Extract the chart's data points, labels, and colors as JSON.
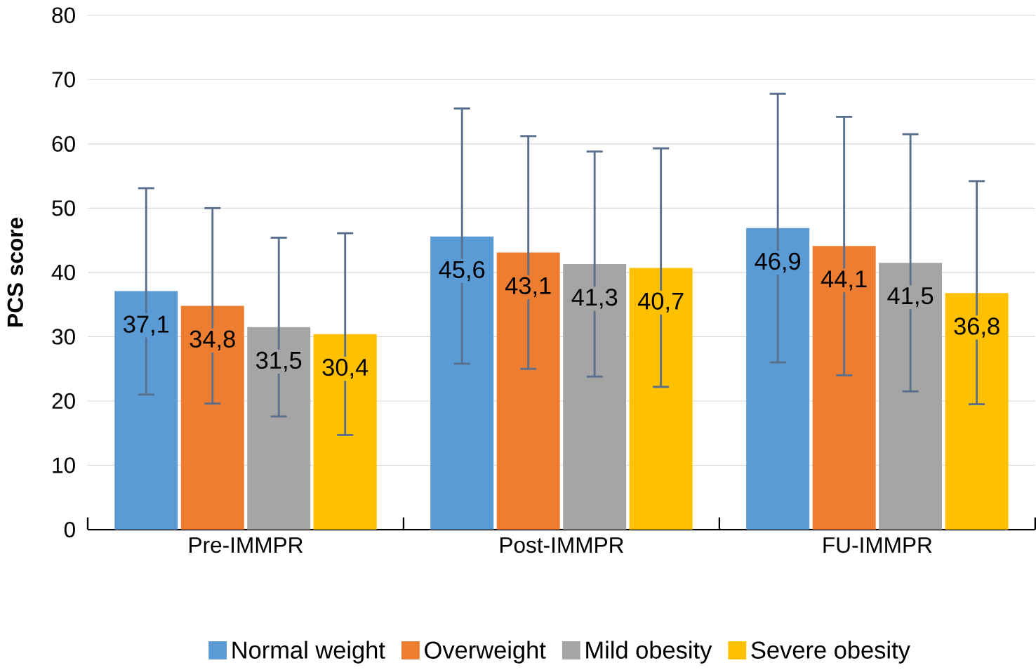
{
  "chart_data": {
    "type": "bar",
    "ylabel": "PCS score",
    "categories": [
      "Pre-IMMPR",
      "Post-IMMPR",
      "FU-IMMPR"
    ],
    "series": [
      {
        "name": "Normal weight",
        "color": "#5b9bd5",
        "values": [
          37.1,
          45.6,
          46.9
        ],
        "value_labels": [
          "37,1",
          "45,6",
          "46,9"
        ],
        "errors": [
          [
            21,
            53.1
          ],
          [
            25.8,
            65.5
          ],
          [
            26,
            67.8
          ]
        ]
      },
      {
        "name": "Overweight",
        "color": "#ed7d31",
        "values": [
          34.8,
          43.1,
          44.1
        ],
        "value_labels": [
          "34,8",
          "43,1",
          "44,1"
        ],
        "errors": [
          [
            19.6,
            50
          ],
          [
            25,
            61.2
          ],
          [
            24,
            64.2
          ]
        ]
      },
      {
        "name": "Mild obesity",
        "color": "#a5a5a5",
        "values": [
          31.5,
          41.3,
          41.5
        ],
        "value_labels": [
          "31,5",
          "41,3",
          "41,5"
        ],
        "errors": [
          [
            17.6,
            45.4
          ],
          [
            23.8,
            58.8
          ],
          [
            21.5,
            61.5
          ]
        ]
      },
      {
        "name": "Severe obesity",
        "color": "#ffc000",
        "values": [
          30.4,
          40.7,
          36.8
        ],
        "value_labels": [
          "30,4",
          "40,7",
          "36,8"
        ],
        "errors": [
          [
            14.7,
            46.1
          ],
          [
            22.2,
            59.3
          ],
          [
            19.5,
            54.2
          ]
        ]
      }
    ],
    "ylim": [
      0,
      80
    ],
    "yticks": [
      0,
      10,
      20,
      30,
      40,
      50,
      60,
      70,
      80
    ],
    "grid": "y",
    "legend": "bottom"
  }
}
